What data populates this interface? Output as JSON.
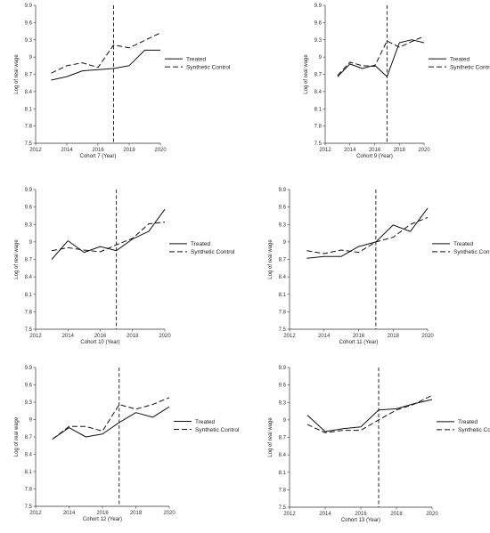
{
  "chart_data": [
    {
      "type": "line",
      "xlabel": "Cohort 7 (Year)",
      "ylabel": "Log of real wage",
      "xlim": [
        2012,
        2020
      ],
      "ylim": [
        7.5,
        9.9
      ],
      "xticks": [
        2012,
        2014,
        2016,
        2018,
        2020
      ],
      "yticks": [
        7.5,
        7.8,
        8.1,
        8.4,
        8.7,
        9,
        9.3,
        9.6,
        9.9
      ],
      "treatment_year": 2017,
      "grid": false,
      "legend_position": "right",
      "x": [
        2013,
        2014,
        2015,
        2016,
        2017,
        2018,
        2019,
        2020
      ],
      "series": [
        {
          "name": "Treated",
          "style": "solid",
          "values": [
            8.6,
            8.66,
            8.76,
            8.78,
            8.8,
            8.85,
            9.12,
            9.12
          ]
        },
        {
          "name": "Synthetic Control",
          "style": "dashed",
          "values": [
            8.72,
            8.85,
            8.9,
            8.82,
            9.21,
            9.16,
            9.29,
            9.42
          ]
        }
      ]
    },
    {
      "type": "line",
      "xlabel": "Cohort 9 (Year)",
      "ylabel": "Log of real wage",
      "xlim": [
        2012,
        2020
      ],
      "ylim": [
        7.5,
        9.9
      ],
      "xticks": [
        2012,
        2014,
        2016,
        2018,
        2020
      ],
      "yticks": [
        7.5,
        7.8,
        8.1,
        8.4,
        8.7,
        9,
        9.3,
        9.6,
        9.9
      ],
      "treatment_year": 2017,
      "grid": false,
      "legend_position": "right",
      "x": [
        2013,
        2014,
        2015,
        2016,
        2017,
        2018,
        2019,
        2020
      ],
      "series": [
        {
          "name": "Treated",
          "style": "solid",
          "values": [
            8.66,
            8.88,
            8.8,
            8.86,
            8.66,
            9.25,
            9.3,
            9.25
          ]
        },
        {
          "name": "Synthetic Control",
          "style": "dashed",
          "values": [
            8.68,
            8.91,
            8.85,
            8.84,
            9.28,
            9.17,
            9.27,
            9.36
          ]
        }
      ]
    },
    {
      "type": "line",
      "xlabel": "Cohort 10 (Year)",
      "ylabel": "Log of real wage",
      "xlim": [
        2012,
        2020
      ],
      "ylim": [
        7.5,
        9.9
      ],
      "xticks": [
        2012,
        2014,
        2016,
        2018,
        2020
      ],
      "yticks": [
        7.5,
        7.8,
        8.1,
        8.4,
        8.7,
        9,
        9.3,
        9.6,
        9.9
      ],
      "treatment_year": 2017,
      "grid": false,
      "legend_position": "right",
      "x": [
        2013,
        2014,
        2015,
        2016,
        2017,
        2018,
        2019,
        2020
      ],
      "series": [
        {
          "name": "Treated",
          "style": "solid",
          "values": [
            8.7,
            9.02,
            8.82,
            8.92,
            8.85,
            9.05,
            9.18,
            9.56
          ]
        },
        {
          "name": "Synthetic Control",
          "style": "dashed",
          "values": [
            8.85,
            8.9,
            8.86,
            8.83,
            8.95,
            9.06,
            9.31,
            9.34
          ]
        }
      ]
    },
    {
      "type": "line",
      "xlabel": "Cohort 11 (Year)",
      "ylabel": "Log of real wage",
      "xlim": [
        2012,
        2020
      ],
      "ylim": [
        7.5,
        9.9
      ],
      "xticks": [
        2012,
        2014,
        2016,
        2018,
        2020
      ],
      "yticks": [
        7.5,
        7.8,
        8.1,
        8.4,
        8.7,
        9,
        9.3,
        9.6,
        9.9
      ],
      "treatment_year": 2017,
      "grid": false,
      "legend_position": "right",
      "x": [
        2013,
        2014,
        2015,
        2016,
        2017,
        2018,
        2019,
        2020
      ],
      "series": [
        {
          "name": "Treated",
          "style": "solid",
          "values": [
            8.72,
            8.75,
            8.75,
            8.92,
            9.0,
            9.29,
            9.18,
            9.58
          ]
        },
        {
          "name": "Synthetic Control",
          "style": "dashed",
          "values": [
            8.85,
            8.8,
            8.86,
            8.82,
            9.0,
            9.08,
            9.3,
            9.42
          ]
        }
      ]
    },
    {
      "type": "line",
      "xlabel": "Cohort 12 (Year)",
      "ylabel": "Log of real wage",
      "xlim": [
        2012,
        2020
      ],
      "ylim": [
        7.5,
        9.9
      ],
      "xticks": [
        2012,
        2014,
        2016,
        2018,
        2020
      ],
      "yticks": [
        7.5,
        7.8,
        8.1,
        8.4,
        8.7,
        9,
        9.3,
        9.6,
        9.9
      ],
      "treatment_year": 2017,
      "grid": false,
      "legend_position": "right",
      "x": [
        2013,
        2014,
        2015,
        2016,
        2017,
        2018,
        2019,
        2020
      ],
      "series": [
        {
          "name": "Treated",
          "style": "solid",
          "values": [
            8.66,
            8.86,
            8.7,
            8.75,
            8.95,
            9.12,
            9.04,
            9.22
          ]
        },
        {
          "name": "Synthetic Control",
          "style": "dashed",
          "values": [
            8.66,
            8.88,
            8.88,
            8.8,
            9.26,
            9.18,
            9.26,
            9.38
          ]
        }
      ]
    },
    {
      "type": "line",
      "xlabel": "Cohort 13 (Year)",
      "ylabel": "Log of real wage",
      "xlim": [
        2012,
        2020
      ],
      "ylim": [
        7.5,
        9.9
      ],
      "xticks": [
        2012,
        2014,
        2016,
        2018,
        2020
      ],
      "yticks": [
        7.5,
        7.8,
        8.1,
        8.4,
        8.7,
        9,
        9.3,
        9.6,
        9.9
      ],
      "treatment_year": 2017,
      "grid": false,
      "legend_position": "right",
      "x": [
        2013,
        2014,
        2015,
        2016,
        2017,
        2018,
        2019,
        2020
      ],
      "series": [
        {
          "name": "Treated",
          "style": "solid",
          "values": [
            9.08,
            8.8,
            8.85,
            8.88,
            9.17,
            9.19,
            9.28,
            9.35
          ]
        },
        {
          "name": "Synthetic Control",
          "style": "dashed",
          "values": [
            8.92,
            8.78,
            8.82,
            8.82,
            9.0,
            9.17,
            9.27,
            9.42
          ]
        }
      ]
    }
  ]
}
